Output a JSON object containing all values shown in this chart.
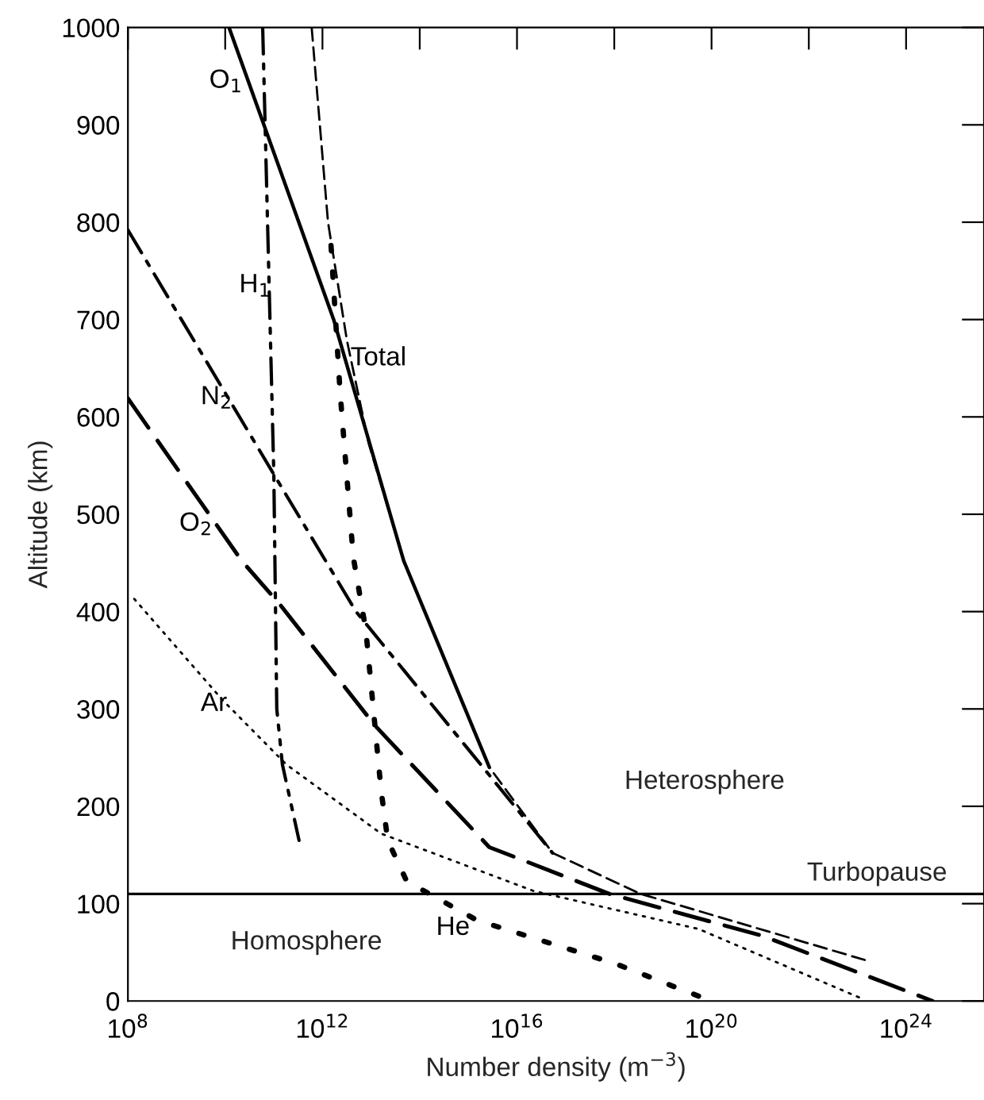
{
  "chart_data": {
    "type": "line",
    "xlabel": "Number density (m$^{−3}$)",
    "ylabel": "Altitude (km)",
    "log": "x",
    "grid": false,
    "xlim": [
      100000000.0,
      4e+25
    ],
    "ylim": [
      0,
      1000
    ],
    "xticks": [
      {
        "value": 100000000.0,
        "label": "10$^{8}$"
      },
      {
        "value": 10000000000.0,
        "label": null
      },
      {
        "value": 1000000000000.0,
        "label": "10$^{12}$"
      },
      {
        "value": 100000000000000.0,
        "label": null
      },
      {
        "value": 1e+16,
        "label": "10$^{16}$"
      },
      {
        "value": 1e+18,
        "label": null
      },
      {
        "value": 1e+20,
        "label": "10$^{20}$"
      },
      {
        "value": 1e+22,
        "label": null
      },
      {
        "value": 1e+24,
        "label": "10$^{24}$"
      }
    ],
    "yticks": [
      0,
      100,
      200,
      300,
      400,
      500,
      600,
      700,
      800,
      900,
      1000
    ],
    "series": [
      {
        "name": "O$_{1}$",
        "color": "#000000",
        "line_style": "solid",
        "x": [
          12000000000.0,
          1700000000000.0,
          47000000000000.0,
          2700000000000000.0
        ],
        "values": [
          1000,
          700,
          452,
          240
        ]
      },
      {
        "name": "Total",
        "color": "#000000",
        "line_style": "dashed",
        "x": [
          600000000000.0,
          1300000000000.0,
          3200000000000.0,
          8900000000000.0,
          47000000000000.0,
          2700000000000000.0,
          5.4e+16,
          3.5e+18,
          1.7e+23
        ],
        "values": [
          1000,
          800,
          678,
          573,
          452,
          240,
          152,
          110,
          41
        ]
      },
      {
        "name": "H$_{1}$",
        "color": "#000000",
        "line_style": "dashdotdot",
        "x": [
          59000000000.0,
          100000000000.0,
          115000000000.0,
          150000000000.0,
          330000000000.0
        ],
        "values": [
          1000,
          541,
          300,
          243,
          165
        ]
      },
      {
        "name": "N$_{2}$",
        "color": "#000000",
        "line_style": "dashdot",
        "x": [
          100000000.0,
          100000000000.0,
          4900000000000.0,
          2000000000000000.0,
          5.4e+16
        ],
        "values": [
          792,
          541,
          400,
          240,
          152
        ]
      },
      {
        "name": "O$_{2}$",
        "color": "#000000",
        "line_style": "longdashed",
        "x": [
          100000000.0,
          22000000000.0,
          135000000000.0,
          12000000000000.0,
          2700000000000000.0,
          8e+17,
          1.1e+21,
          3.5e+24
        ],
        "values": [
          619,
          452,
          407,
          283,
          158,
          110,
          67,
          0
        ]
      },
      {
        "name": "Ar",
        "color": "#000000",
        "line_style": "dotted",
        "x": [
          135000000.0,
          8900000000.0,
          180000000000.0,
          16000000000000.0,
          2.2e+16,
          5.4e+19,
          1.3e+23
        ],
        "values": [
          413,
          309,
          243,
          172,
          113,
          74,
          2
        ]
      },
      {
        "name": "He",
        "color": "#000000",
        "line_style": "heavydotted",
        "x": [
          1500000000000.0,
          2300000000000.0,
          4300000000000.0,
          7800000000000.0,
          16000000000000.0,
          22000000000000.0,
          54000000000000.0,
          1500000000000000.0,
          1.1e+18,
          5.4e+19
        ],
        "values": [
          776,
          626,
          456,
          381,
          217,
          165,
          123,
          83,
          38,
          5
        ]
      }
    ],
    "ref_lines": [
      {
        "axis": "y",
        "value": 110,
        "label": "Turbopause",
        "color": "#000000"
      }
    ],
    "annotations": [
      "Heterosphere",
      "Homosphere"
    ]
  }
}
